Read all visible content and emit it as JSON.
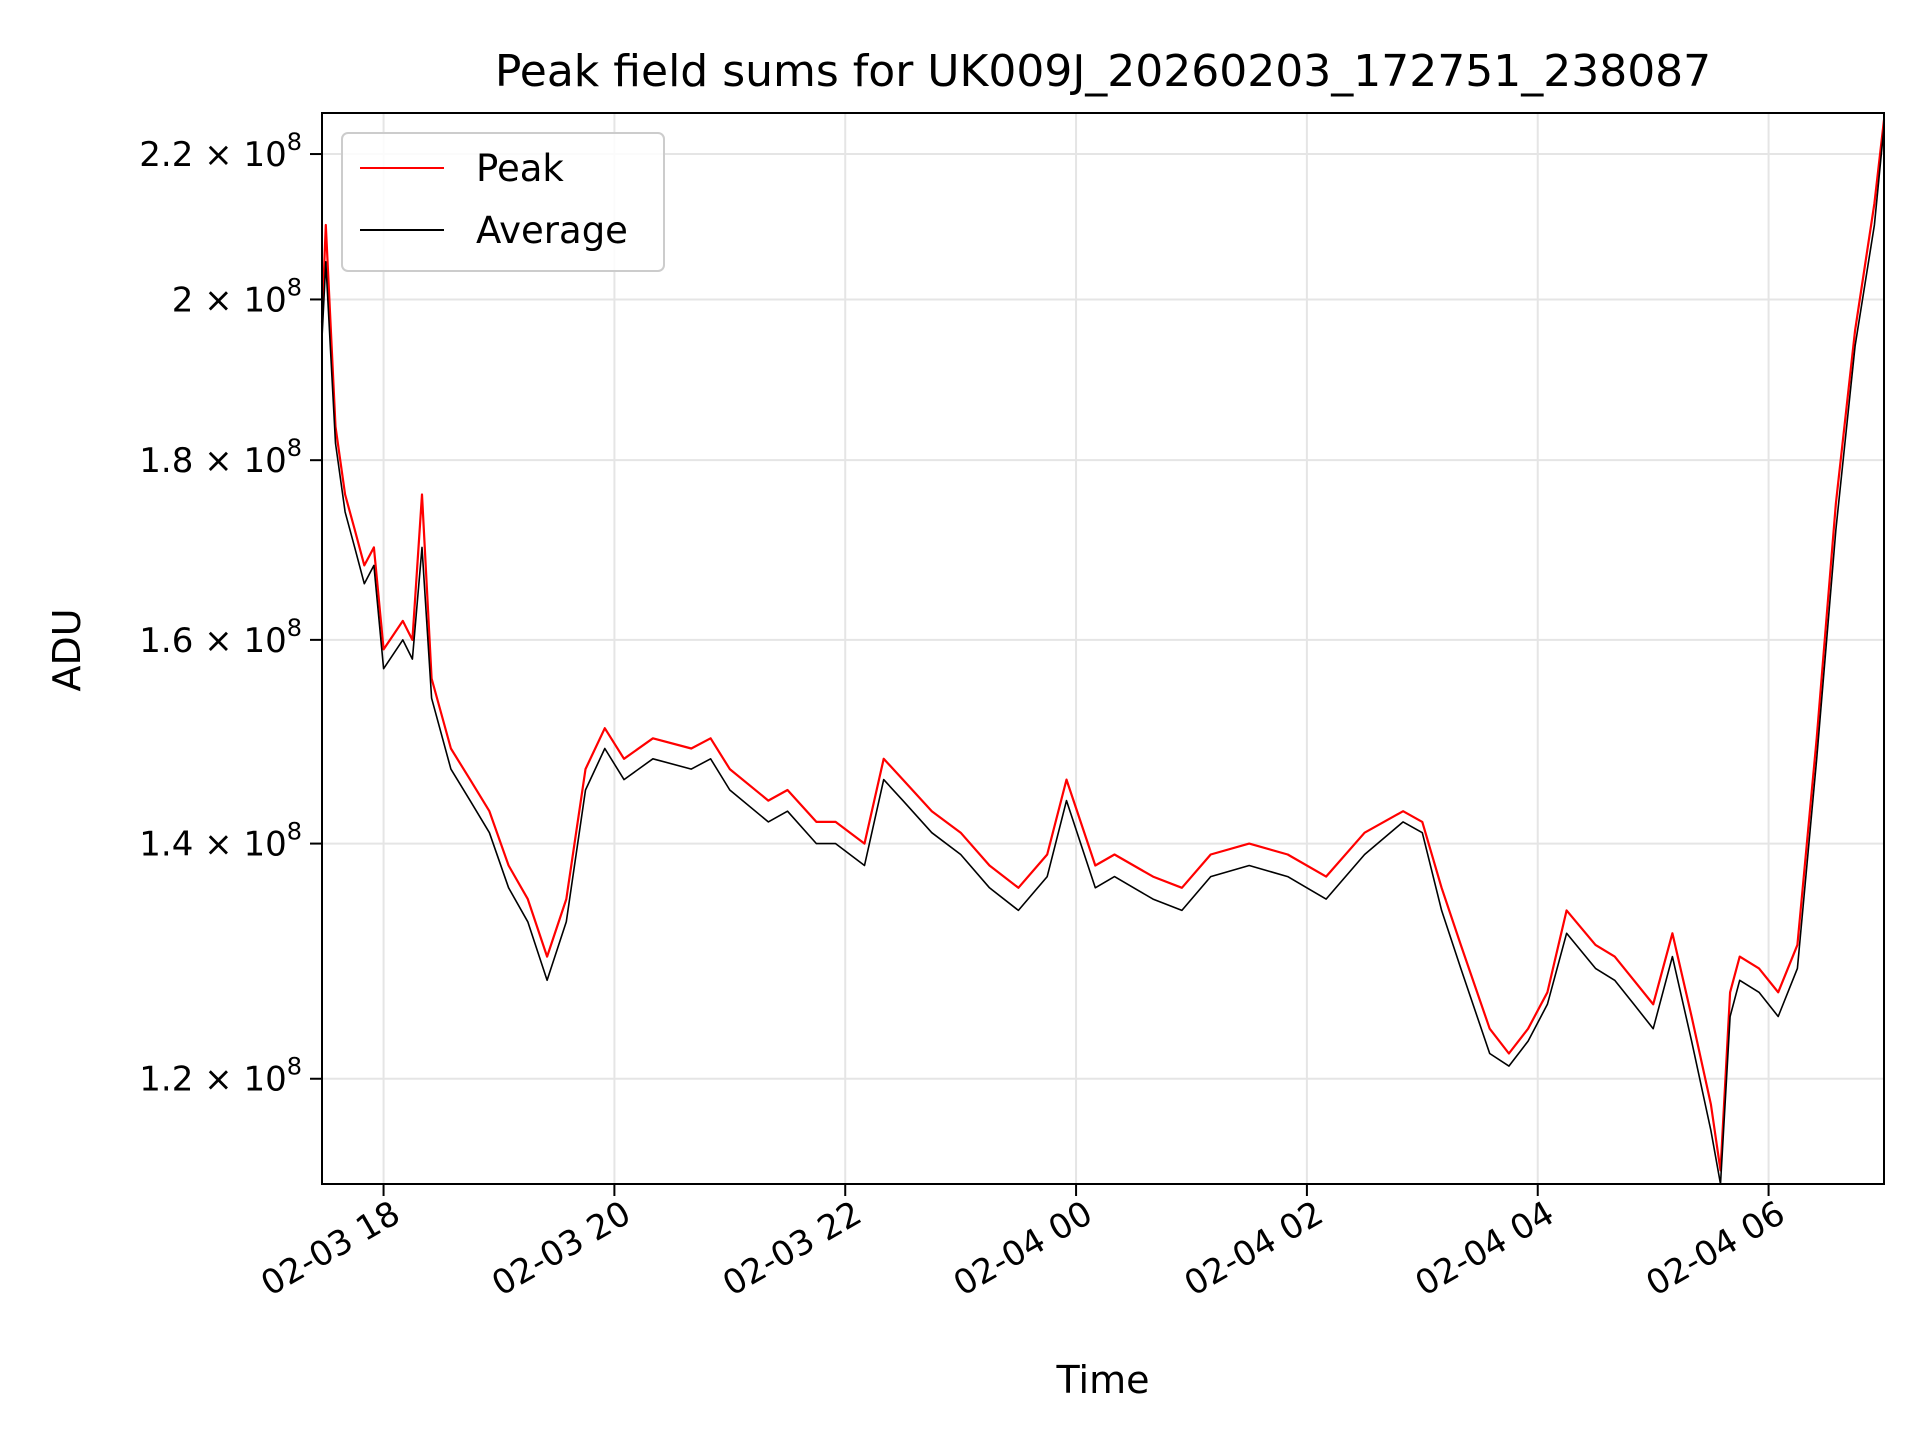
{
  "chart_data": {
    "type": "line",
    "title": "Peak field sums for UK009J_20260203_172751_238087",
    "xlabel": "Time",
    "ylabel": "ADU",
    "yscale": "log",
    "grid": true,
    "legend_position": "upper-left",
    "xlim": [
      "2026-02-03 17:28",
      "2026-02-04 07:00"
    ],
    "ylim": [
      112000000,
      226000000
    ],
    "x_ticks": [
      {
        "value": "2026-02-03 18:00",
        "label": "02-03 18"
      },
      {
        "value": "2026-02-03 20:00",
        "label": "02-03 20"
      },
      {
        "value": "2026-02-03 22:00",
        "label": "02-03 22"
      },
      {
        "value": "2026-02-04 00:00",
        "label": "02-04 00"
      },
      {
        "value": "2026-02-04 02:00",
        "label": "02-04 02"
      },
      {
        "value": "2026-02-04 04:00",
        "label": "02-04 04"
      },
      {
        "value": "2026-02-04 06:00",
        "label": "02-04 06"
      }
    ],
    "y_ticks": [
      {
        "value": 120000000,
        "mantissa": "1.2",
        "exponent": "8"
      },
      {
        "value": 140000000,
        "mantissa": "1.4",
        "exponent": "8"
      },
      {
        "value": 160000000,
        "mantissa": "1.6",
        "exponent": "8"
      },
      {
        "value": 180000000,
        "mantissa": "1.8",
        "exponent": "8"
      },
      {
        "value": 200000000,
        "mantissa": "2",
        "exponent": "8"
      },
      {
        "value": 220000000,
        "mantissa": "2.2",
        "exponent": "8"
      }
    ],
    "series": [
      {
        "name": "Peak",
        "color": "#ff0000",
        "x": [
          "2026-02-03 17:28",
          "2026-02-03 17:30",
          "2026-02-03 17:35",
          "2026-02-03 17:40",
          "2026-02-03 17:45",
          "2026-02-03 17:50",
          "2026-02-03 17:55",
          "2026-02-03 18:00",
          "2026-02-03 18:10",
          "2026-02-03 18:15",
          "2026-02-03 18:20",
          "2026-02-03 18:25",
          "2026-02-03 18:35",
          "2026-02-03 18:45",
          "2026-02-03 18:55",
          "2026-02-03 19:05",
          "2026-02-03 19:15",
          "2026-02-03 19:25",
          "2026-02-03 19:35",
          "2026-02-03 19:45",
          "2026-02-03 19:55",
          "2026-02-03 20:05",
          "2026-02-03 20:20",
          "2026-02-03 20:40",
          "2026-02-03 20:50",
          "2026-02-03 21:00",
          "2026-02-03 21:20",
          "2026-02-03 21:30",
          "2026-02-03 21:45",
          "2026-02-03 21:55",
          "2026-02-03 22:10",
          "2026-02-03 22:20",
          "2026-02-03 22:30",
          "2026-02-03 22:45",
          "2026-02-03 23:00",
          "2026-02-03 23:15",
          "2026-02-03 23:30",
          "2026-02-03 23:45",
          "2026-02-03 23:55",
          "2026-02-04 00:10",
          "2026-02-04 00:20",
          "2026-02-04 00:40",
          "2026-02-04 00:55",
          "2026-02-04 01:10",
          "2026-02-04 01:30",
          "2026-02-04 01:50",
          "2026-02-04 02:10",
          "2026-02-04 02:30",
          "2026-02-04 02:50",
          "2026-02-04 03:00",
          "2026-02-04 03:10",
          "2026-02-04 03:20",
          "2026-02-04 03:35",
          "2026-02-04 03:45",
          "2026-02-04 03:55",
          "2026-02-04 04:05",
          "2026-02-04 04:15",
          "2026-02-04 04:30",
          "2026-02-04 04:40",
          "2026-02-04 04:50",
          "2026-02-04 05:00",
          "2026-02-04 05:10",
          "2026-02-04 05:20",
          "2026-02-04 05:30",
          "2026-02-04 05:35",
          "2026-02-04 05:40",
          "2026-02-04 05:45",
          "2026-02-04 05:55",
          "2026-02-04 06:05",
          "2026-02-04 06:15",
          "2026-02-04 06:25",
          "2026-02-04 06:35",
          "2026-02-04 06:45",
          "2026-02-04 06:55",
          "2026-02-04 07:00"
        ],
        "y": [
          197000000,
          210000000,
          184000000,
          176000000,
          172000000,
          168000000,
          170000000,
          159000000,
          162000000,
          160000000,
          176000000,
          156000000,
          149000000,
          146000000,
          143000000,
          138000000,
          135000000,
          130000000,
          135000000,
          147000000,
          151000000,
          148000000,
          150000000,
          149000000,
          150000000,
          147000000,
          144000000,
          145000000,
          142000000,
          142000000,
          140000000,
          148000000,
          146000000,
          143000000,
          141000000,
          138000000,
          136000000,
          139000000,
          146000000,
          138000000,
          139000000,
          137000000,
          136000000,
          139000000,
          140000000,
          139000000,
          137000000,
          141000000,
          143000000,
          142000000,
          136000000,
          131000000,
          124000000,
          122000000,
          124000000,
          127000000,
          134000000,
          131000000,
          130000000,
          128000000,
          126000000,
          132000000,
          125000000,
          118000000,
          113000000,
          127000000,
          130000000,
          129000000,
          127000000,
          131000000,
          150000000,
          175000000,
          196000000,
          213000000,
          225000000
        ]
      },
      {
        "name": "Average",
        "color": "#000000",
        "x": [
          "2026-02-03 17:28",
          "2026-02-03 17:30",
          "2026-02-03 17:35",
          "2026-02-03 17:40",
          "2026-02-03 17:45",
          "2026-02-03 17:50",
          "2026-02-03 17:55",
          "2026-02-03 18:00",
          "2026-02-03 18:10",
          "2026-02-03 18:15",
          "2026-02-03 18:20",
          "2026-02-03 18:25",
          "2026-02-03 18:35",
          "2026-02-03 18:45",
          "2026-02-03 18:55",
          "2026-02-03 19:05",
          "2026-02-03 19:15",
          "2026-02-03 19:25",
          "2026-02-03 19:35",
          "2026-02-03 19:45",
          "2026-02-03 19:55",
          "2026-02-03 20:05",
          "2026-02-03 20:20",
          "2026-02-03 20:40",
          "2026-02-03 20:50",
          "2026-02-03 21:00",
          "2026-02-03 21:20",
          "2026-02-03 21:30",
          "2026-02-03 21:45",
          "2026-02-03 21:55",
          "2026-02-03 22:10",
          "2026-02-03 22:20",
          "2026-02-03 22:30",
          "2026-02-03 22:45",
          "2026-02-03 23:00",
          "2026-02-03 23:15",
          "2026-02-03 23:30",
          "2026-02-03 23:45",
          "2026-02-03 23:55",
          "2026-02-04 00:10",
          "2026-02-04 00:20",
          "2026-02-04 00:40",
          "2026-02-04 00:55",
          "2026-02-04 01:10",
          "2026-02-04 01:30",
          "2026-02-04 01:50",
          "2026-02-04 02:10",
          "2026-02-04 02:30",
          "2026-02-04 02:50",
          "2026-02-04 03:00",
          "2026-02-04 03:10",
          "2026-02-04 03:20",
          "2026-02-04 03:35",
          "2026-02-04 03:45",
          "2026-02-04 03:55",
          "2026-02-04 04:05",
          "2026-02-04 04:15",
          "2026-02-04 04:30",
          "2026-02-04 04:40",
          "2026-02-04 04:50",
          "2026-02-04 05:00",
          "2026-02-04 05:10",
          "2026-02-04 05:20",
          "2026-02-04 05:30",
          "2026-02-04 05:35",
          "2026-02-04 05:40",
          "2026-02-04 05:45",
          "2026-02-04 05:55",
          "2026-02-04 06:05",
          "2026-02-04 06:15",
          "2026-02-04 06:25",
          "2026-02-04 06:35",
          "2026-02-04 06:45",
          "2026-02-04 06:55",
          "2026-02-04 07:00"
        ],
        "y": [
          195000000,
          205000000,
          182000000,
          174000000,
          170000000,
          166000000,
          168000000,
          157000000,
          160000000,
          158000000,
          170000000,
          154000000,
          147000000,
          144000000,
          141000000,
          136000000,
          133000000,
          128000000,
          133000000,
          145000000,
          149000000,
          146000000,
          148000000,
          147000000,
          148000000,
          145000000,
          142000000,
          143000000,
          140000000,
          140000000,
          138000000,
          146000000,
          144000000,
          141000000,
          139000000,
          136000000,
          134000000,
          137000000,
          144000000,
          136000000,
          137000000,
          135000000,
          134000000,
          137000000,
          138000000,
          137000000,
          135000000,
          139000000,
          142000000,
          141000000,
          134000000,
          129000000,
          122000000,
          121000000,
          123000000,
          126000000,
          132000000,
          129000000,
          128000000,
          126000000,
          124000000,
          130000000,
          123000000,
          116000000,
          112000000,
          125000000,
          128000000,
          127000000,
          125000000,
          129000000,
          148000000,
          172000000,
          194000000,
          210000000,
          224000000
        ]
      }
    ]
  }
}
